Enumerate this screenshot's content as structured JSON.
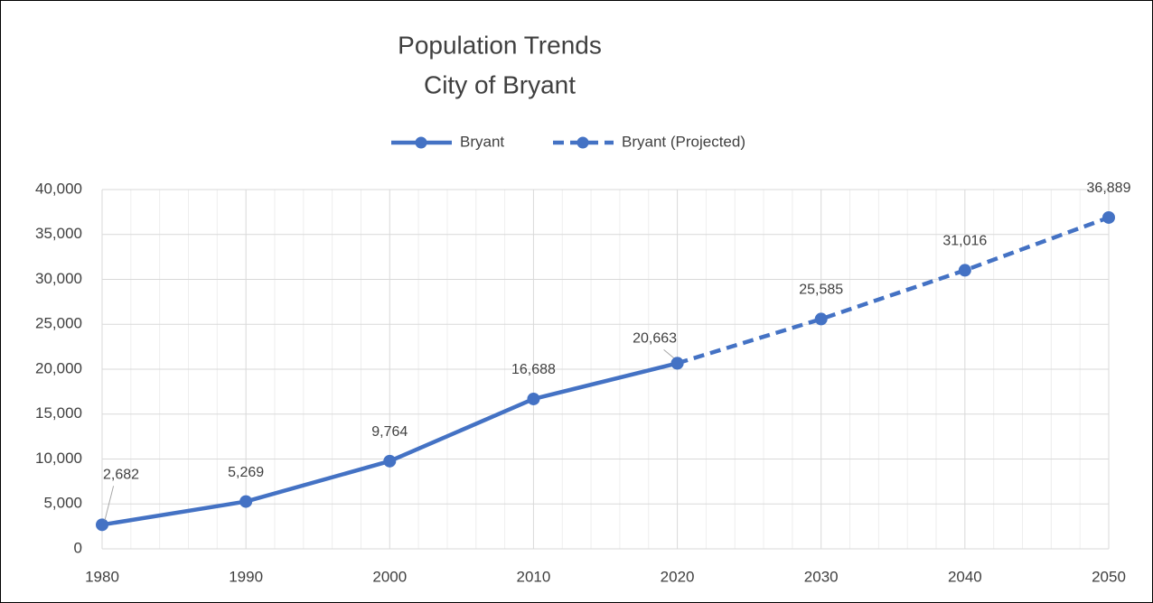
{
  "chart_data": {
    "type": "line",
    "title": "Population Trends",
    "subtitle": "City of Bryant",
    "x": [
      1980,
      1990,
      2000,
      2010,
      2020,
      2030,
      2040,
      2050
    ],
    "series": [
      {
        "name": "Bryant",
        "color": "#4472c4",
        "dashed": false,
        "values": [
          2682,
          5269,
          9764,
          16688,
          20663,
          null,
          null,
          null
        ],
        "value_labels": [
          "2,682",
          "5,269",
          "9,764",
          "16,688",
          "20,663",
          null,
          null,
          null
        ]
      },
      {
        "name": "Bryant (Projected)",
        "color": "#4472c4",
        "dashed": true,
        "values": [
          null,
          null,
          null,
          null,
          20663,
          25585,
          31016,
          36889
        ],
        "value_labels": [
          null,
          null,
          null,
          null,
          null,
          "25,585",
          "31,016",
          "36,889"
        ]
      }
    ],
    "xlim": [
      1980,
      2050
    ],
    "xticks": [
      1980,
      1990,
      2000,
      2010,
      2020,
      2030,
      2040,
      2050
    ],
    "xminor": [
      1982,
      1984,
      1986,
      1988,
      1992,
      1994,
      1996,
      1998,
      2002,
      2004,
      2006,
      2008,
      2012,
      2014,
      2016,
      2018,
      2022,
      2024,
      2026,
      2028,
      2032,
      2034,
      2036,
      2038,
      2042,
      2044,
      2046,
      2048
    ],
    "ylim": [
      0,
      40000
    ],
    "yticks": [
      0,
      {
        "value": 5000,
        "label": "5,000"
      },
      {
        "value": 10000,
        "label": "10,000"
      },
      {
        "value": 15000,
        "label": "15,000"
      },
      {
        "value": 20000,
        "label": "20,000"
      },
      {
        "value": 25000,
        "label": "25,000"
      },
      {
        "value": 30000,
        "label": "30,000"
      },
      {
        "value": 35000,
        "label": "35,000"
      },
      {
        "value": 40000,
        "label": "40,000"
      }
    ],
    "grid": true,
    "legend": "top"
  }
}
